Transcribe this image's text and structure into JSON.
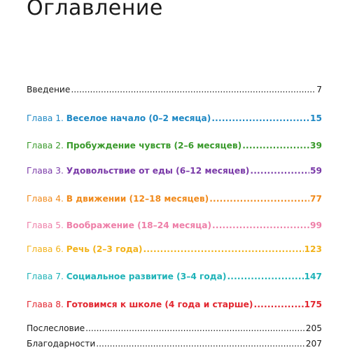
{
  "page": {
    "title": "Оглавление"
  },
  "toc": {
    "intro": {
      "label": "Введение",
      "page": "7"
    },
    "chapters": [
      {
        "prefix": "Глава 1.",
        "title": "Веселое начало (0–2 месяца)",
        "page": "15",
        "color": "#1e88c4"
      },
      {
        "prefix": "Глава 2.",
        "title": "Пробуждение чувств (2–6 месяцев)",
        "page": "39",
        "color": "#3a9a2c"
      },
      {
        "prefix": "Глава 3.",
        "title": "Удовольствие от еды (6–12 месяцев)",
        "page": "59",
        "color": "#7a3aa8"
      },
      {
        "prefix": "Глава 4.",
        "title": "В движении (12–18 месяцев)",
        "page": "77",
        "color": "#f08a1c"
      },
      {
        "prefix": "Глава 5.",
        "title": "Воображение (18–24 месяца)",
        "page": "99",
        "color": "#ee7fa8"
      },
      {
        "prefix": "Глава 6.",
        "title": "Речь (2–3 года)",
        "page": "123",
        "color": "#f2b21a"
      },
      {
        "prefix": "Глава 7.",
        "title": "Социальное развитие (3–4 года)",
        "page": "147",
        "color": "#1fb3b8"
      },
      {
        "prefix": "Глава 8.",
        "title": "Готовимся к школе (4 года и старше)",
        "page": "175",
        "color": "#e2262f"
      }
    ],
    "afterword": {
      "label": "Послесловие",
      "page": "205"
    },
    "acknowledgements": {
      "label": "Благодарности",
      "page": "207"
    }
  }
}
